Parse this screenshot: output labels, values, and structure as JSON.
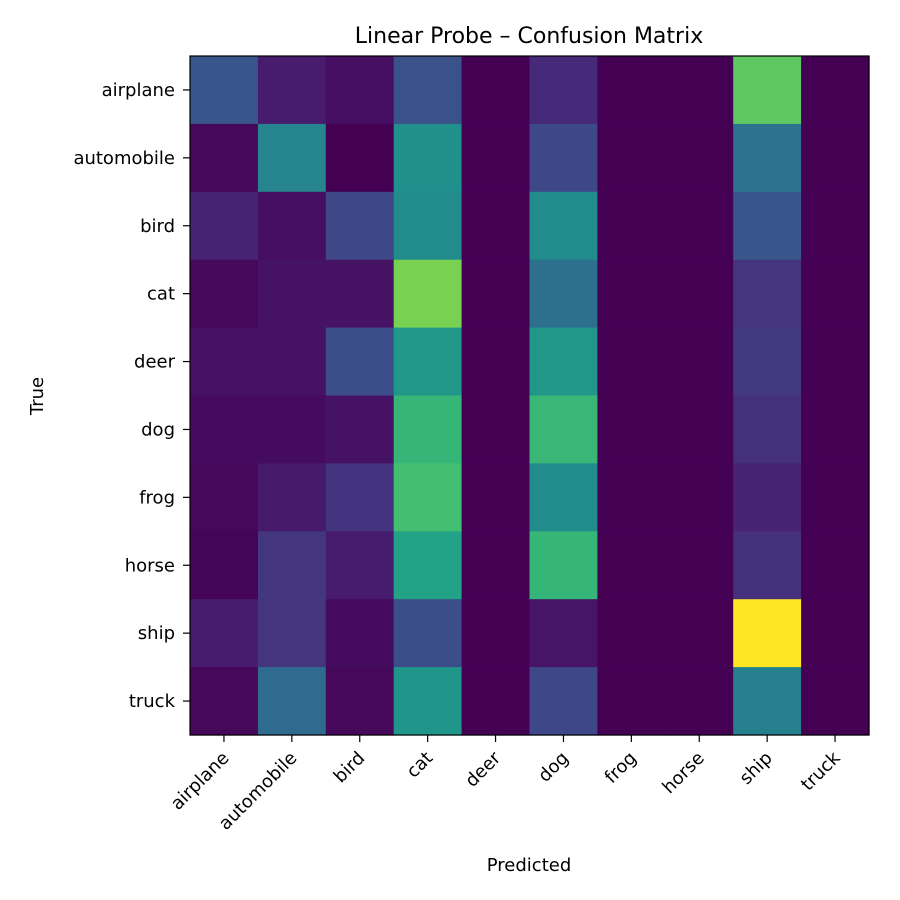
{
  "chart_data": {
    "type": "heatmap",
    "title": "Linear Probe – Confusion Matrix",
    "xlabel": "Predicted",
    "ylabel": "True",
    "x_categories": [
      "airplane",
      "automobile",
      "bird",
      "cat",
      "deer",
      "dog",
      "frog",
      "horse",
      "ship",
      "truck"
    ],
    "y_categories": [
      "airplane",
      "automobile",
      "bird",
      "cat",
      "deer",
      "dog",
      "frog",
      "horse",
      "ship",
      "truck"
    ],
    "values": [
      [
        27,
        8,
        4,
        25,
        0,
        12,
        0,
        0,
        75,
        0
      ],
      [
        2,
        45,
        0,
        50,
        0,
        22,
        0,
        0,
        38,
        0
      ],
      [
        10,
        4,
        22,
        48,
        0,
        48,
        0,
        0,
        27,
        0
      ],
      [
        2,
        5,
        5,
        80,
        0,
        37,
        0,
        0,
        16,
        0
      ],
      [
        5,
        5,
        24,
        53,
        0,
        53,
        0,
        0,
        17,
        0
      ],
      [
        3,
        3,
        5,
        66,
        0,
        67,
        0,
        0,
        14,
        0
      ],
      [
        2,
        7,
        15,
        70,
        0,
        48,
        0,
        0,
        10,
        0
      ],
      [
        1,
        16,
        8,
        58,
        0,
        66,
        0,
        0,
        14,
        0
      ],
      [
        8,
        16,
        3,
        24,
        0,
        6,
        0,
        0,
        100,
        0
      ],
      [
        2,
        35,
        2,
        52,
        0,
        22,
        0,
        0,
        43,
        0
      ]
    ],
    "colormap": "viridis",
    "vmin": 0,
    "vmax": 100
  }
}
